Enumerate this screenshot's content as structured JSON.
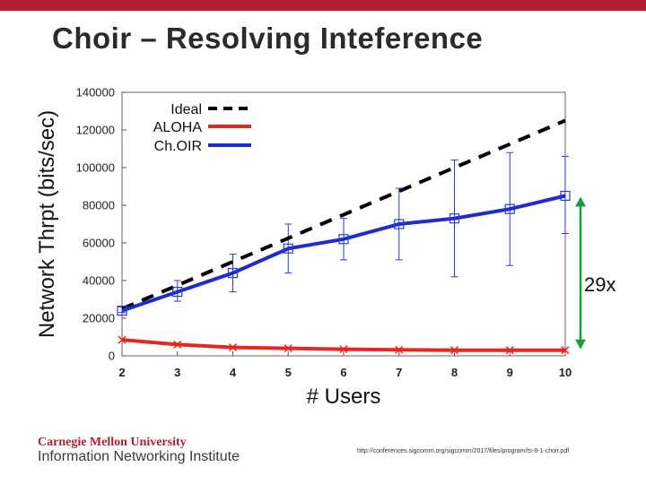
{
  "slide": {
    "title": "Choir – Resolving Inteference",
    "logo_line1": "Carnegie Mellon University",
    "logo_line2": "Information Networking Institute",
    "source": "http://conferences.sigcomm.org/sigcomm/2017/files/program/ts-8-1-choir.pdf"
  },
  "colors": {
    "accent": "#b01e2f",
    "ideal": "#000000",
    "aloha": "#e8261f",
    "choir": "#1c2ccf",
    "error": "#2b3bd6",
    "arrow": "#1a9c3c"
  },
  "chart_data": {
    "type": "line",
    "xlabel": "# Users",
    "ylabel": "Network Thrpt (bits/sec)",
    "x": [
      2,
      3,
      4,
      5,
      6,
      7,
      8,
      9,
      10
    ],
    "xlim": [
      2,
      10
    ],
    "ylim": [
      0,
      140000
    ],
    "yticks": [
      0,
      20000,
      40000,
      60000,
      80000,
      100000,
      120000,
      140000
    ],
    "ytick_labels": [
      "0",
      "20000",
      "40000",
      "60000",
      "80000",
      "100000",
      "120000",
      "140000"
    ],
    "xtick_labels": [
      "2",
      "3",
      "4",
      "5",
      "6",
      "7",
      "8",
      "9",
      "10"
    ],
    "grid": false,
    "legend_position": "top-left",
    "series": [
      {
        "name": "Ideal",
        "style": "dashed",
        "values": [
          25000,
          37500,
          50000,
          62500,
          75000,
          87500,
          100000,
          112500,
          125000
        ]
      },
      {
        "name": "ALOHA",
        "style": "solid",
        "marker": "x",
        "values": [
          8500,
          6000,
          4500,
          4000,
          3500,
          3200,
          3000,
          3000,
          3000
        ]
      },
      {
        "name": "Ch.OIR",
        "style": "solid",
        "marker": "square",
        "values": [
          24000,
          34000,
          44000,
          57000,
          62000,
          70000,
          73000,
          78000,
          85000
        ],
        "error": [
          [
            23000,
            26000
          ],
          [
            29000,
            40000
          ],
          [
            34000,
            54000
          ],
          [
            44000,
            70000
          ],
          [
            51000,
            73000
          ],
          [
            51000,
            89000
          ],
          [
            42000,
            104000
          ],
          [
            48000,
            108000
          ],
          [
            65000,
            106000
          ]
        ]
      }
    ],
    "annotation": {
      "text": "29x",
      "from": 3000,
      "to": 85000,
      "x": 10
    }
  }
}
